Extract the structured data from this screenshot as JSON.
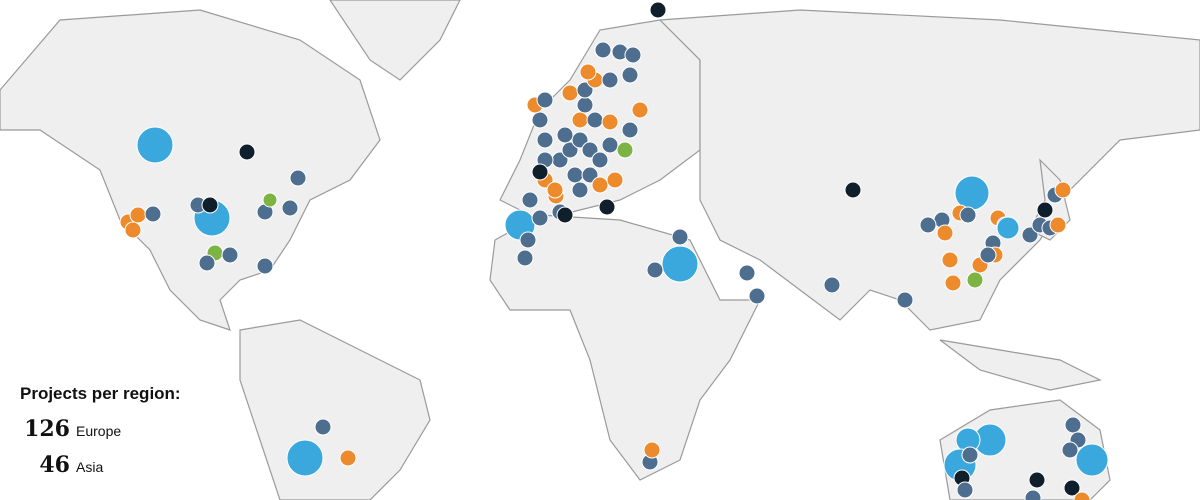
{
  "legend": {
    "title": "Projects per region:",
    "items": [
      {
        "count": "126",
        "region": "Europe"
      },
      {
        "count": "46",
        "region": "Asia"
      }
    ]
  },
  "colors": {
    "land": "#efefef",
    "border": "#9a9a9a",
    "large_marker": "#3aa8dc",
    "blue_gray_marker": "#4d6e8e",
    "orange_marker": "#ec8a2c",
    "green_marker": "#7cb342",
    "dark_marker": "#0f1f2b"
  }
}
